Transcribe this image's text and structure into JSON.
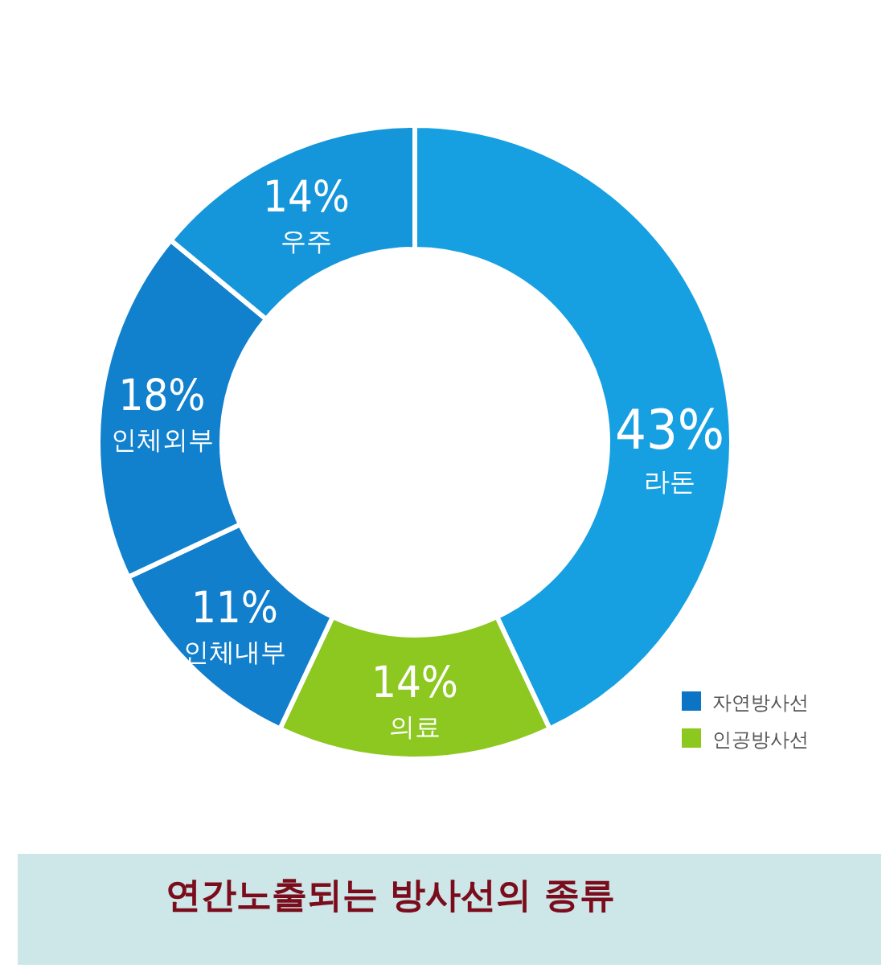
{
  "chart_data": {
    "type": "donut",
    "title": "연간노출되는 방사선의 종류",
    "categories": [
      "라돈",
      "의료",
      "인체내부",
      "인체외부",
      "우주"
    ],
    "values": [
      43,
      14,
      11,
      18,
      14
    ],
    "colors": [
      "#16a0e2",
      "#8cc820",
      "#127fcc",
      "#1180cd",
      "#1596da"
    ],
    "value_labels": [
      "43%",
      "14%",
      "11%",
      "18%",
      "14%"
    ],
    "annotations": [
      "자연방사선",
      "인공방사선"
    ]
  }
}
